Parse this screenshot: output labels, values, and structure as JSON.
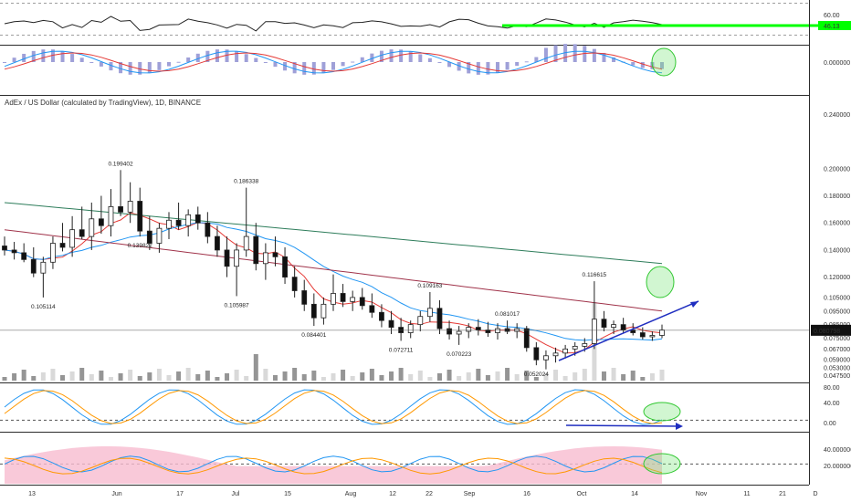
{
  "chart_data": {
    "type": "candlestick",
    "title": "AdEx / US Dollar (calculated by TradingView), 1D, BINANCE",
    "interval": "1D",
    "exchange": "BINANCE",
    "last_price": "0.080798",
    "price_ticks": [
      "0.240000",
      "0.200000",
      "0.180000",
      "0.160000",
      "0.140000",
      "0.120000",
      "0.105000",
      "0.095000",
      "0.085000",
      "0.075000",
      "0.067000",
      "0.059000",
      "0.053000",
      "0.047500"
    ],
    "date_ticks": [
      "13",
      "Jun",
      "17",
      "Jul",
      "15",
      "Aug",
      "12",
      "22",
      "Sep",
      "16",
      "Oct",
      "14",
      "Nov",
      "11",
      "21",
      "D"
    ],
    "price_annotations": [
      "0.199402",
      "0.186338",
      "0.139822",
      "0.105114",
      "0.105987",
      "0.084401",
      "0.109163",
      "0.072711",
      "0.070223",
      "0.081017",
      "0.116615",
      "0.052024"
    ],
    "rsi_pane": {
      "ticks": [
        "60.00"
      ],
      "current_value": "46.13",
      "level_color": "#00ff00"
    },
    "macd_pane": {
      "ticks": [
        "0.000000"
      ],
      "histogram_color": "#9fa0d8",
      "macd_color": "#2196f3",
      "signal_color": "#e53935"
    },
    "stoch_pane": {
      "ticks": [
        "80.00",
        "40.00",
        "0.00"
      ],
      "k_color": "#2196f3",
      "d_color": "#ff9800"
    },
    "dmi_pane": {
      "ticks": [
        "40.000000",
        "20.000000"
      ],
      "adx_fill_color": "#f8bbd0",
      "plus_di_color": "#2196f3",
      "minus_di_color": "#ff9800"
    },
    "moving_averages": [
      {
        "color": "#e53935",
        "period_hint": "short"
      },
      {
        "color": "#2196f3",
        "period_hint": "medium"
      },
      {
        "color": "#a0334a",
        "period_hint": "long"
      },
      {
        "color": "#2e7d5b",
        "period_hint": "longest"
      }
    ],
    "candles": [
      {
        "o": 0.143,
        "h": 0.15,
        "l": 0.136,
        "c": 0.14
      },
      {
        "o": 0.14,
        "h": 0.146,
        "l": 0.133,
        "c": 0.138
      },
      {
        "o": 0.138,
        "h": 0.145,
        "l": 0.131,
        "c": 0.133
      },
      {
        "o": 0.133,
        "h": 0.142,
        "l": 0.12,
        "c": 0.123
      },
      {
        "o": 0.123,
        "h": 0.135,
        "l": 0.105,
        "c": 0.131
      },
      {
        "o": 0.131,
        "h": 0.15,
        "l": 0.126,
        "c": 0.145
      },
      {
        "o": 0.145,
        "h": 0.16,
        "l": 0.139,
        "c": 0.142
      },
      {
        "o": 0.142,
        "h": 0.165,
        "l": 0.135,
        "c": 0.155
      },
      {
        "o": 0.155,
        "h": 0.172,
        "l": 0.148,
        "c": 0.15
      },
      {
        "o": 0.15,
        "h": 0.175,
        "l": 0.14,
        "c": 0.163
      },
      {
        "o": 0.163,
        "h": 0.18,
        "l": 0.152,
        "c": 0.158
      },
      {
        "o": 0.158,
        "h": 0.185,
        "l": 0.15,
        "c": 0.172
      },
      {
        "o": 0.172,
        "h": 0.199,
        "l": 0.165,
        "c": 0.168
      },
      {
        "o": 0.168,
        "h": 0.19,
        "l": 0.16,
        "c": 0.176
      },
      {
        "o": 0.176,
        "h": 0.186,
        "l": 0.15,
        "c": 0.154
      },
      {
        "o": 0.154,
        "h": 0.165,
        "l": 0.14,
        "c": 0.145
      },
      {
        "o": 0.145,
        "h": 0.16,
        "l": 0.138,
        "c": 0.156
      },
      {
        "o": 0.156,
        "h": 0.168,
        "l": 0.148,
        "c": 0.162
      },
      {
        "o": 0.162,
        "h": 0.175,
        "l": 0.155,
        "c": 0.158
      },
      {
        "o": 0.158,
        "h": 0.17,
        "l": 0.15,
        "c": 0.166
      },
      {
        "o": 0.166,
        "h": 0.172,
        "l": 0.155,
        "c": 0.16
      },
      {
        "o": 0.16,
        "h": 0.168,
        "l": 0.145,
        "c": 0.15
      },
      {
        "o": 0.15,
        "h": 0.158,
        "l": 0.135,
        "c": 0.14
      },
      {
        "o": 0.14,
        "h": 0.15,
        "l": 0.12,
        "c": 0.128
      },
      {
        "o": 0.128,
        "h": 0.145,
        "l": 0.106,
        "c": 0.14
      },
      {
        "o": 0.14,
        "h": 0.186,
        "l": 0.135,
        "c": 0.15
      },
      {
        "o": 0.15,
        "h": 0.16,
        "l": 0.125,
        "c": 0.13
      },
      {
        "o": 0.13,
        "h": 0.145,
        "l": 0.118,
        "c": 0.138
      },
      {
        "o": 0.138,
        "h": 0.15,
        "l": 0.128,
        "c": 0.135
      },
      {
        "o": 0.135,
        "h": 0.142,
        "l": 0.115,
        "c": 0.12
      },
      {
        "o": 0.12,
        "h": 0.128,
        "l": 0.105,
        "c": 0.11
      },
      {
        "o": 0.11,
        "h": 0.118,
        "l": 0.095,
        "c": 0.1
      },
      {
        "o": 0.1,
        "h": 0.108,
        "l": 0.084,
        "c": 0.09
      },
      {
        "o": 0.09,
        "h": 0.105,
        "l": 0.085,
        "c": 0.1
      },
      {
        "o": 0.1,
        "h": 0.122,
        "l": 0.095,
        "c": 0.108
      },
      {
        "o": 0.108,
        "h": 0.115,
        "l": 0.098,
        "c": 0.102
      },
      {
        "o": 0.102,
        "h": 0.11,
        "l": 0.095,
        "c": 0.105
      },
      {
        "o": 0.105,
        "h": 0.112,
        "l": 0.096,
        "c": 0.099
      },
      {
        "o": 0.099,
        "h": 0.108,
        "l": 0.09,
        "c": 0.094
      },
      {
        "o": 0.094,
        "h": 0.1,
        "l": 0.083,
        "c": 0.088
      },
      {
        "o": 0.088,
        "h": 0.095,
        "l": 0.078,
        "c": 0.083
      },
      {
        "o": 0.083,
        "h": 0.09,
        "l": 0.073,
        "c": 0.079
      },
      {
        "o": 0.079,
        "h": 0.088,
        "l": 0.075,
        "c": 0.085
      },
      {
        "o": 0.085,
        "h": 0.095,
        "l": 0.08,
        "c": 0.091
      },
      {
        "o": 0.091,
        "h": 0.109,
        "l": 0.087,
        "c": 0.097
      },
      {
        "o": 0.097,
        "h": 0.103,
        "l": 0.078,
        "c": 0.082
      },
      {
        "o": 0.082,
        "h": 0.088,
        "l": 0.074,
        "c": 0.078
      },
      {
        "o": 0.078,
        "h": 0.084,
        "l": 0.07,
        "c": 0.08
      },
      {
        "o": 0.08,
        "h": 0.086,
        "l": 0.075,
        "c": 0.083
      },
      {
        "o": 0.083,
        "h": 0.089,
        "l": 0.077,
        "c": 0.081
      },
      {
        "o": 0.081,
        "h": 0.087,
        "l": 0.076,
        "c": 0.079
      },
      {
        "o": 0.079,
        "h": 0.086,
        "l": 0.074,
        "c": 0.082
      },
      {
        "o": 0.082,
        "h": 0.088,
        "l": 0.078,
        "c": 0.08
      },
      {
        "o": 0.08,
        "h": 0.086,
        "l": 0.075,
        "c": 0.082
      },
      {
        "o": 0.082,
        "h": 0.084,
        "l": 0.065,
        "c": 0.068
      },
      {
        "o": 0.068,
        "h": 0.072,
        "l": 0.055,
        "c": 0.059
      },
      {
        "o": 0.059,
        "h": 0.066,
        "l": 0.052,
        "c": 0.062
      },
      {
        "o": 0.062,
        "h": 0.068,
        "l": 0.057,
        "c": 0.064
      },
      {
        "o": 0.064,
        "h": 0.07,
        "l": 0.06,
        "c": 0.067
      },
      {
        "o": 0.067,
        "h": 0.072,
        "l": 0.062,
        "c": 0.069
      },
      {
        "o": 0.069,
        "h": 0.075,
        "l": 0.065,
        "c": 0.071
      },
      {
        "o": 0.071,
        "h": 0.117,
        "l": 0.067,
        "c": 0.089
      },
      {
        "o": 0.089,
        "h": 0.095,
        "l": 0.08,
        "c": 0.083
      },
      {
        "o": 0.083,
        "h": 0.088,
        "l": 0.078,
        "c": 0.085
      },
      {
        "o": 0.085,
        "h": 0.09,
        "l": 0.079,
        "c": 0.081
      },
      {
        "o": 0.081,
        "h": 0.086,
        "l": 0.077,
        "c": 0.079
      },
      {
        "o": 0.079,
        "h": 0.083,
        "l": 0.074,
        "c": 0.076
      },
      {
        "o": 0.076,
        "h": 0.08,
        "l": 0.073,
        "c": 0.077
      },
      {
        "o": 0.077,
        "h": 0.085,
        "l": 0.075,
        "c": 0.081
      }
    ]
  }
}
